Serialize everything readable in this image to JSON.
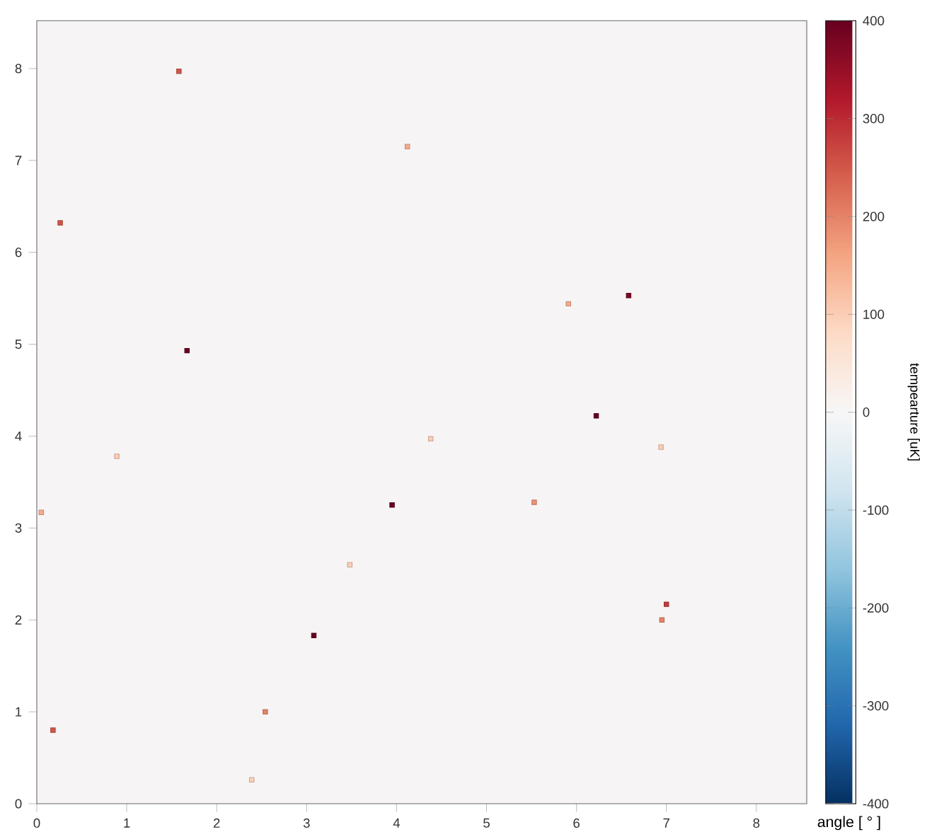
{
  "chart_data": {
    "type": "scatter",
    "xlabel": "angle [ ° ]",
    "clabel": "tempearture [uK]",
    "x": [
      1.58,
      0.26,
      1.67,
      4.12,
      6.58,
      5.91,
      6.22,
      3.95,
      5.53,
      7.0,
      6.95,
      3.08,
      2.54,
      0.18,
      3.48,
      0.89,
      0.05,
      2.39,
      4.38,
      6.94
    ],
    "values": [
      7.97,
      6.32,
      4.93,
      7.15,
      5.53,
      5.44,
      4.22,
      3.25,
      3.28,
      2.17,
      2.0,
      1.83,
      1.0,
      0.8,
      2.6,
      3.78,
      3.17,
      0.26,
      3.97,
      3.88
    ],
    "cvalues": [
      250,
      250,
      400,
      150,
      380,
      150,
      400,
      400,
      180,
      280,
      200,
      400,
      200,
      250,
      100,
      100,
      150,
      100,
      100,
      100
    ],
    "xlim": [
      0,
      8.56
    ],
    "ylim": [
      0,
      8.52
    ],
    "xticks": [
      0,
      1,
      2,
      3,
      4,
      5,
      6,
      7,
      8
    ],
    "yticks": [
      0,
      1,
      2,
      3,
      4,
      5,
      6,
      7,
      8
    ],
    "clim": [
      -400,
      400
    ],
    "cticks": [
      -400,
      -300,
      -200,
      -100,
      0,
      100,
      200,
      300,
      400
    ],
    "grid": false,
    "marker": "square"
  }
}
